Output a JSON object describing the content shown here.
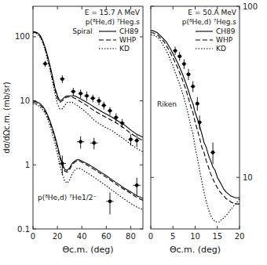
{
  "chart_data": [
    {
      "type": "line",
      "log": "y",
      "xlabel": "Θc.m. (deg)",
      "ylabel": "dσ/dΩc.m. (mb/sr)",
      "xlim": [
        0,
        90
      ],
      "ylim": [
        0.1,
        300
      ],
      "xticks": [
        0,
        20,
        40,
        60,
        80
      ],
      "yticks": [
        0.1,
        1,
        10,
        100
      ],
      "legend": "upper right",
      "annotations": [
        "E = 15.7 A MeV",
        "p(⁸He,d) ⁷Heg.s",
        "Spiral",
        "p(⁸He,d) ⁷He1/2⁻"
      ],
      "series": [
        {
          "name": "CH89",
          "color": "black",
          "line_style": "solid",
          "x": [
            0,
            1,
            2,
            3,
            4,
            5,
            6,
            7,
            8,
            10,
            12,
            14,
            16,
            18,
            20,
            22,
            24,
            26,
            28,
            30,
            32,
            34,
            36,
            38,
            40,
            42,
            44,
            46,
            48,
            50,
            55,
            60,
            65,
            70,
            75,
            80,
            85,
            90
          ],
          "values": [
            120,
            120,
            119,
            117,
            114,
            110,
            104,
            96,
            87,
            68,
            50,
            35,
            24,
            16,
            12,
            10,
            10.5,
            11.5,
            12,
            12,
            12,
            12,
            11.5,
            11,
            10.5,
            10,
            9.5,
            9,
            8.5,
            8,
            7,
            6.2,
            5.5,
            4.8,
            4.2,
            3.5,
            3.0,
            2.7
          ]
        },
        {
          "name": "WHP",
          "color": "black",
          "line_style": "dashed",
          "x": [
            0,
            1,
            2,
            3,
            4,
            5,
            6,
            7,
            8,
            10,
            12,
            14,
            16,
            18,
            20,
            22,
            24,
            26,
            28,
            30,
            32,
            34,
            36,
            38,
            40,
            42,
            44,
            46,
            48,
            50,
            55,
            60,
            65,
            70,
            75,
            80,
            85,
            90
          ],
          "values": [
            118,
            118,
            117,
            115,
            111,
            107,
            101,
            93,
            84,
            65,
            47,
            33,
            22,
            15,
            11,
            9.5,
            10,
            11,
            11.5,
            11.5,
            11.5,
            11,
            10.5,
            10,
            9.5,
            9,
            8.5,
            8,
            7.5,
            7,
            6.2,
            5.5,
            4.9,
            4.3,
            3.7,
            3.1,
            2.7,
            2.4
          ]
        },
        {
          "name": "KD",
          "color": "black",
          "line_style": "dotted",
          "x": [
            0,
            1,
            2,
            3,
            4,
            5,
            6,
            7,
            8,
            10,
            12,
            14,
            16,
            18,
            20,
            22,
            24,
            26,
            28,
            30,
            32,
            34,
            36,
            38,
            40,
            42,
            44,
            46,
            48,
            50,
            55,
            60,
            65,
            70,
            75,
            80,
            85,
            90
          ],
          "values": [
            115,
            115,
            114,
            112,
            108,
            103,
            97,
            89,
            80,
            61,
            43,
            30,
            20,
            13,
            9,
            7.5,
            7.5,
            8.5,
            9.5,
            9.5,
            9.5,
            9,
            8.5,
            8,
            7.5,
            7,
            6.5,
            6,
            5.5,
            5,
            4.3,
            3.8,
            3.4,
            2.9,
            2.5,
            2.1,
            1.8,
            1.6
          ]
        },
        {
          "color": "black",
          "line_style": "solid",
          "x": [
            0,
            2,
            4,
            6,
            8,
            10,
            12,
            14,
            16,
            18,
            20,
            22,
            24,
            26,
            28,
            30,
            32,
            34,
            36,
            38,
            40,
            42,
            44,
            46,
            48,
            50,
            55,
            60,
            65,
            70,
            75,
            80,
            85,
            90
          ],
          "values": [
            10,
            9.8,
            9.5,
            9,
            8.2,
            7.2,
            6,
            4.8,
            3.7,
            2.8,
            2.0,
            1.4,
            1.05,
            0.85,
            0.82,
            0.9,
            1.05,
            1.15,
            1.2,
            1.2,
            1.15,
            1.1,
            1.05,
            1.0,
            0.95,
            0.9,
            0.78,
            0.68,
            0.58,
            0.5,
            0.43,
            0.38,
            0.33,
            0.3
          ]
        },
        {
          "color": "black",
          "line_style": "dashed",
          "x": [
            0,
            2,
            4,
            6,
            8,
            10,
            12,
            14,
            16,
            18,
            20,
            22,
            24,
            26,
            28,
            30,
            32,
            34,
            36,
            38,
            40,
            42,
            44,
            46,
            48,
            50,
            55,
            60,
            65,
            70,
            75,
            80,
            85,
            90
          ],
          "values": [
            9.5,
            9.3,
            9,
            8.5,
            7.8,
            6.8,
            5.7,
            4.5,
            3.5,
            2.6,
            1.9,
            1.3,
            0.98,
            0.8,
            0.77,
            0.85,
            1.0,
            1.1,
            1.15,
            1.15,
            1.1,
            1.05,
            1.0,
            0.95,
            0.9,
            0.85,
            0.74,
            0.64,
            0.55,
            0.47,
            0.41,
            0.36,
            0.31,
            0.28
          ]
        },
        {
          "color": "black",
          "line_style": "dotted",
          "x": [
            0,
            2,
            4,
            6,
            8,
            10,
            12,
            14,
            16,
            18,
            20,
            22,
            24,
            26,
            28,
            30,
            32,
            34,
            36,
            38,
            40,
            42,
            44,
            46,
            48,
            50,
            55,
            60,
            65,
            70,
            75,
            80,
            85,
            90
          ],
          "values": [
            9,
            8.8,
            8.5,
            8,
            7.3,
            6.3,
            5.2,
            4.0,
            3.0,
            2.2,
            1.5,
            1.0,
            0.72,
            0.56,
            0.52,
            0.58,
            0.72,
            0.82,
            0.88,
            0.88,
            0.85,
            0.8,
            0.76,
            0.72,
            0.68,
            0.64,
            0.55,
            0.47,
            0.4,
            0.34,
            0.29,
            0.25,
            0.22,
            0.2
          ]
        },
        {
          "type": "scatter",
          "marker": "circle",
          "color": "black",
          "x": [
            10,
            24,
            33,
            39,
            44,
            49,
            54,
            58,
            63,
            68,
            73,
            80,
            85
          ],
          "values": [
            38,
            22,
            14,
            13,
            12,
            11,
            10,
            8.5,
            7,
            5.5,
            4.5,
            2.5,
            2.4
          ],
          "x_errors": [
            2,
            2,
            2,
            2,
            2,
            2,
            2,
            2,
            2,
            2,
            2,
            2,
            2
          ],
          "errors": [
            4,
            3,
            2,
            2,
            2,
            1.5,
            1.5,
            1.2,
            1,
            0.9,
            0.7,
            0.5,
            0.5
          ]
        },
        {
          "type": "scatter",
          "marker": "circle",
          "color": "black",
          "x": [
            24,
            39,
            50,
            63,
            85
          ],
          "values": [
            1.05,
            2.3,
            2.2,
            0.27,
            0.48
          ],
          "x_errors": [
            3,
            3,
            3,
            3,
            3
          ],
          "errors": [
            0.35,
            0.5,
            0.45,
            0.1,
            0.15
          ]
        }
      ]
    },
    {
      "type": "line",
      "log": "y",
      "xlabel": "Θc.m. (deg)",
      "xlim": [
        0,
        20
      ],
      "ylim": [
        5,
        100
      ],
      "xticks": [
        0,
        5,
        10,
        15,
        20
      ],
      "yticks": [
        10,
        100
      ],
      "legend": "upper right",
      "annotations": [
        "E = 50.A MeV",
        "p(⁸He,d) ⁷Heg.s",
        "Riken"
      ],
      "series": [
        {
          "name": "CH89",
          "color": "black",
          "line_style": "solid",
          "x": [
            0,
            0.5,
            1,
            1.5,
            2,
            2.5,
            3,
            3.5,
            4,
            4.5,
            5,
            5.5,
            6,
            6.5,
            7,
            7.5,
            8,
            8.5,
            9,
            9.5,
            10,
            10.5,
            11,
            11.5,
            12,
            12.5,
            13,
            13.5,
            14,
            14.5,
            15,
            15.5,
            16,
            16.5,
            17,
            17.5,
            18,
            18.5,
            19,
            19.5,
            20
          ],
          "values": [
            72,
            72,
            71,
            70,
            68,
            66,
            64,
            62,
            59,
            56,
            53,
            50,
            47,
            44,
            41,
            38,
            35,
            32,
            29,
            27,
            24,
            22,
            20,
            18,
            16,
            15,
            13.5,
            12.5,
            11.5,
            11,
            10,
            9.5,
            9,
            8.5,
            8.2,
            8,
            7.8,
            7.7,
            7.6,
            7.6,
            7.6
          ]
        },
        {
          "name": "WHP",
          "color": "black",
          "line_style": "dashed",
          "x": [
            0,
            0.5,
            1,
            1.5,
            2,
            2.5,
            3,
            3.5,
            4,
            4.5,
            5,
            5.5,
            6,
            6.5,
            7,
            7.5,
            8,
            8.5,
            9,
            9.5,
            10,
            10.5,
            11,
            11.5,
            12,
            12.5,
            13,
            13.5,
            14,
            14.5,
            15,
            15.5,
            16,
            16.5,
            17,
            17.5,
            18,
            18.5,
            19,
            19.5,
            20
          ],
          "values": [
            70,
            70,
            69,
            68,
            66,
            64,
            62,
            59,
            56,
            53,
            50,
            47,
            44,
            41,
            38,
            35,
            32,
            29,
            26,
            24,
            21,
            19,
            17,
            15,
            14,
            12.5,
            11.5,
            10.5,
            9.8,
            9.2,
            8.7,
            8.3,
            8,
            7.8,
            7.5,
            7.4,
            7.2,
            7.1,
            7.0,
            7.0,
            7.0
          ]
        },
        {
          "name": "KD",
          "color": "black",
          "line_style": "dotted",
          "x": [
            0,
            0.5,
            1,
            1.5,
            2,
            2.5,
            3,
            3.5,
            4,
            4.5,
            5,
            5.5,
            6,
            6.5,
            7,
            7.5,
            8,
            8.5,
            9,
            9.5,
            10,
            10.5,
            11,
            11.5,
            12,
            12.5,
            13,
            13.5,
            14,
            14.5,
            15,
            15.5,
            16,
            16.5,
            17,
            17.5,
            18,
            18.5,
            19,
            19.5,
            20
          ],
          "values": [
            68,
            68,
            67,
            66,
            64,
            61,
            58,
            55,
            52,
            48,
            45,
            41,
            38,
            35,
            32,
            29,
            26,
            23,
            20,
            18,
            15,
            13,
            11,
            9.5,
            8.2,
            7.2,
            6.5,
            6.0,
            5.7,
            5.5,
            5.5,
            5.5,
            5.7,
            5.8,
            6.0,
            6.2,
            6.5,
            6.7,
            7.0,
            7.2,
            7.5
          ]
        },
        {
          "type": "scatter",
          "marker": "circle",
          "color": "black",
          "x": [
            5.5,
            6.5,
            7.5,
            8.5,
            9.5,
            10.5,
            11.0,
            14.0
          ],
          "values": [
            55,
            51,
            46,
            40,
            34,
            27,
            21,
            14
          ],
          "x_errors": [
            0.5,
            0.5,
            0.5,
            0.5,
            0.5,
            0.5,
            0.5,
            0.5
          ],
          "errors": [
            3,
            3,
            3,
            3,
            2.5,
            2.5,
            2,
            2
          ]
        }
      ]
    }
  ]
}
